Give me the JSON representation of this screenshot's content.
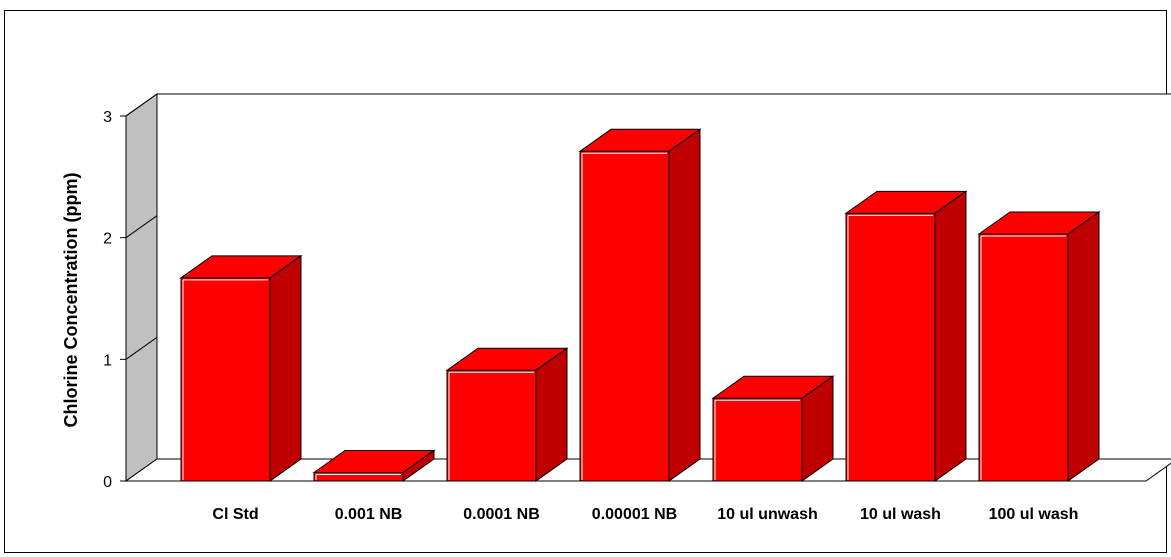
{
  "chart_data": {
    "type": "bar",
    "title": "",
    "xlabel": "",
    "ylabel": "Chlorine Concentration (ppm)",
    "ylim": [
      0,
      3
    ],
    "yticks": [
      0,
      1,
      2,
      3
    ],
    "categories": [
      "Cl Std",
      "0.001 NB",
      "0.0001 NB",
      "0.00001 NB",
      "10 ul unwash",
      "10 ul wash",
      "100 ul wash"
    ],
    "values": [
      1.67,
      0.07,
      0.91,
      2.71,
      0.68,
      2.2,
      2.03
    ],
    "grid": false,
    "legend": "none",
    "three_d": true,
    "colors": {
      "front": "#ff0000",
      "top": "#ff0000",
      "side": "#c00000",
      "back_wall": "#c0c0c0",
      "edge": "#000000"
    }
  }
}
